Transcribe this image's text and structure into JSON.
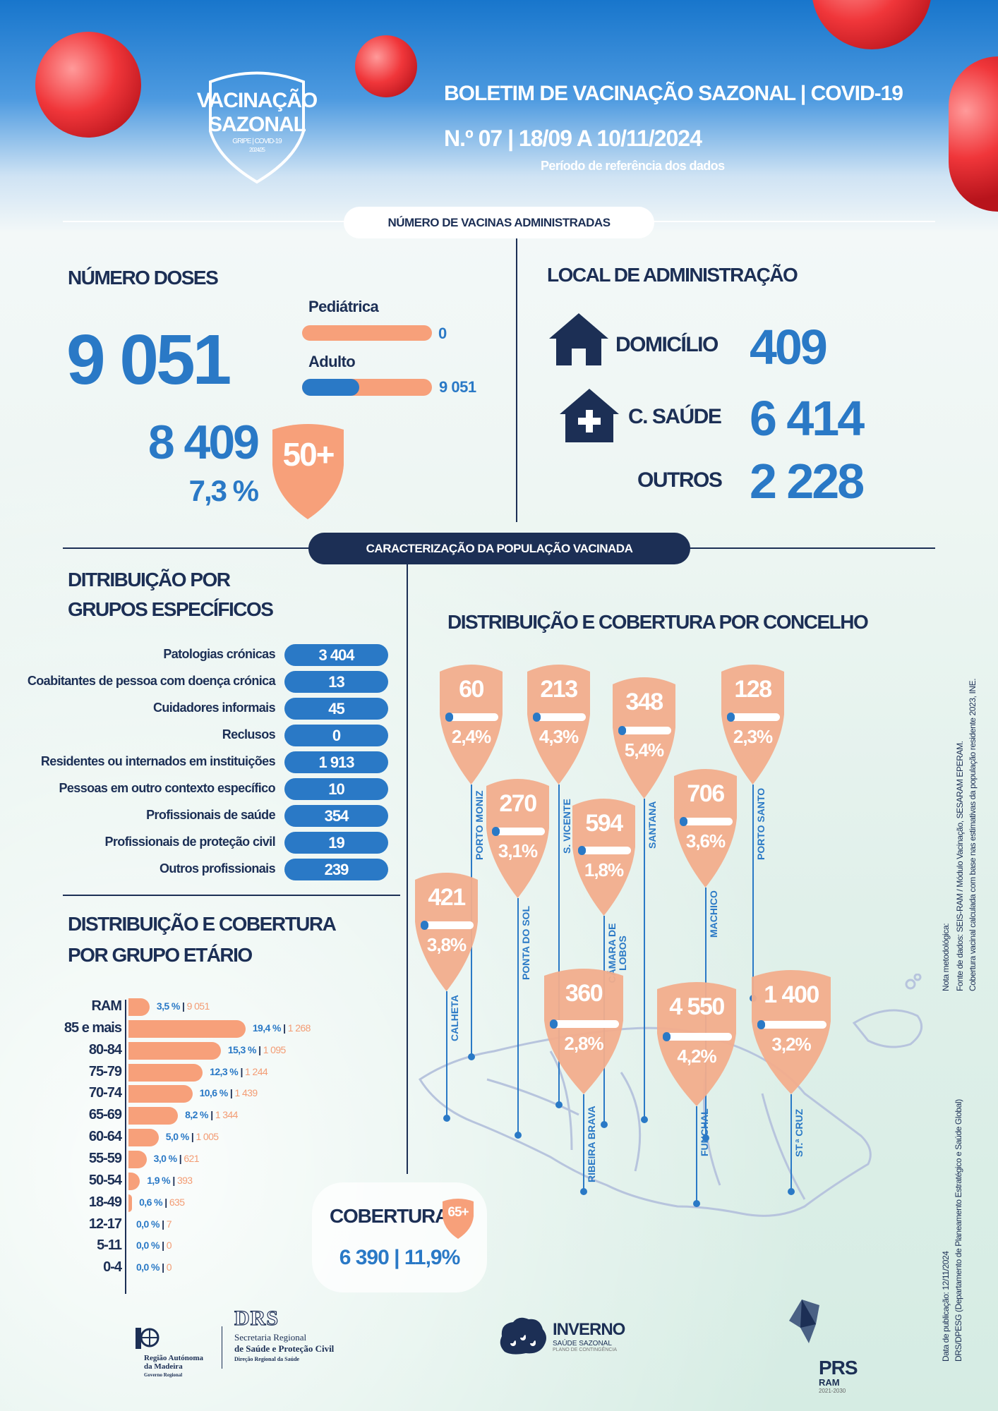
{
  "header": {
    "logo": {
      "line1": "VACINAÇÃO",
      "line2": "SAZONAL",
      "sub": "GRIPE | COVID-19",
      "season": "2024/25"
    },
    "title": "BOLETIM DE VACINAÇÃO SAZONAL | COVID-19",
    "issue": "N.º 07 | 18/09 A 10/11/2024",
    "period_note": "Período de referência dos dados"
  },
  "section1": {
    "pill": "NÚMERO DE VACINAS ADMINISTRADAS",
    "doses": {
      "title": "NÚMERO DOSES",
      "total": "9 051",
      "pediatric": {
        "label": "Pediátrica",
        "value": "0",
        "fill_fraction": 0
      },
      "adult": {
        "label": "Adulto",
        "value": "9 051",
        "fill_fraction": 0.44
      },
      "age50_value": "8 409",
      "age50_pct": "7,3 %",
      "age50_badge": "50+"
    },
    "local": {
      "title": "LOCAL DE ADMINISTRAÇÃO",
      "items": [
        {
          "label": "DOMICÍLIO",
          "value": "409",
          "icon": "house-icon"
        },
        {
          "label": "C. SAÚDE",
          "value": "6 414",
          "icon": "health-center-icon"
        },
        {
          "label": "OUTROS",
          "value": "2 228"
        }
      ]
    }
  },
  "section2": {
    "pill": "CARACTERIZAÇÃO DA POPULAÇÃO VACINADA",
    "groups": {
      "title1": "DITRIBUIÇÃO POR",
      "title2": "GRUPOS ESPECÍFICOS",
      "items": [
        {
          "label": "Patologias crónicas",
          "value": "3 404"
        },
        {
          "label": "Coabitantes de pessoa com doença crónica",
          "value": "13"
        },
        {
          "label": "Cuidadores informais",
          "value": "45"
        },
        {
          "label": "Reclusos",
          "value": "0"
        },
        {
          "label": "Residentes ou internados em instituições",
          "value": "1 913"
        },
        {
          "label": "Pessoas em outro contexto específico",
          "value": "10"
        },
        {
          "label": "Profissionais de saúde",
          "value": "354"
        },
        {
          "label": "Profissionais de proteção civil",
          "value": "19"
        },
        {
          "label": "Outros profissionais",
          "value": "239"
        }
      ]
    },
    "age": {
      "title1": "DISTRIBUIÇÃO E COBERTURA",
      "title2": "POR GRUPO ETÁRIO"
    },
    "coverage65": {
      "label": "COBERTURA",
      "badge": "65+",
      "value": "6 390 | 11,9%"
    },
    "concelho": {
      "title": "DISTRIBUIÇÃO E COBERTURA POR CONCELHO",
      "items": [
        {
          "name": "PORTO MONIZ",
          "doses": "60",
          "coverage": "2,4%",
          "coverage_value": 2.4
        },
        {
          "name": "S. VICENTE",
          "doses": "213",
          "coverage": "4,3%",
          "coverage_value": 4.3
        },
        {
          "name": "SANTANA",
          "doses": "348",
          "coverage": "5,4%",
          "coverage_value": 5.4
        },
        {
          "name": "PORTO SANTO",
          "doses": "128",
          "coverage": "2,3%",
          "coverage_value": 2.3
        },
        {
          "name": "PONTA DO SOL",
          "doses": "270",
          "coverage": "3,1%",
          "coverage_value": 3.1
        },
        {
          "name": "CÂMARA DE LOBOS",
          "doses": "594",
          "coverage": "1,8%",
          "coverage_value": 1.8
        },
        {
          "name": "MACHICO",
          "doses": "706",
          "coverage": "3,6%",
          "coverage_value": 3.6
        },
        {
          "name": "CALHETA",
          "doses": "421",
          "coverage": "3,8%",
          "coverage_value": 3.8
        },
        {
          "name": "RIBEIRA BRAVA",
          "doses": "360",
          "coverage": "2,8%",
          "coverage_value": 2.8
        },
        {
          "name": "FUNCHAL",
          "doses": "4 550",
          "coverage": "4,2%",
          "coverage_value": 4.2
        },
        {
          "name": "ST.ª CRUZ",
          "doses": "1 400",
          "coverage": "3,2%",
          "coverage_value": 3.2
        }
      ]
    }
  },
  "chart_data": {
    "type": "bar",
    "orientation": "horizontal",
    "categories": [
      "RAM",
      "85 e mais",
      "80-84",
      "75-79",
      "70-74",
      "65-69",
      "60-64",
      "55-59",
      "50-54",
      "18-49",
      "12-17",
      "5-11",
      "0-4"
    ],
    "series": [
      {
        "values": [
          3.5,
          19.4,
          15.3,
          12.3,
          10.6,
          8.2,
          5.0,
          3.0,
          1.9,
          0.6,
          0.0,
          0.0,
          0.0
        ],
        "labels": [
          "3,5 %",
          "19,4 %",
          "15,3 %",
          "12,3 %",
          "10,6 %",
          "8,2 %",
          "5,0 %",
          "3,0 %",
          "1,9 %",
          "0,6 %",
          "0,0 %",
          "0,0 %",
          "0,0 %"
        ]
      },
      {
        "values": [
          "9 051",
          "1 268",
          "1 095",
          "1 244",
          "1 439",
          "1 344",
          "1 005",
          "621",
          "393",
          "635",
          "7",
          "0",
          "0"
        ]
      }
    ],
    "bar_color": "#f7a07a",
    "pct_color": "#2a79c6",
    "count_color": "#f39c74",
    "grid": false
  },
  "notes": {
    "method_title": "Nota metodológica:",
    "source": "Fonte de dados: SEIS-RAM / Módulo Vacinação, SESARAM EPERAM.",
    "coverage_note": "Cobertura vacinal calculada com base nas estimativas da população residente 2023, INE.",
    "pub_date": "Data de publicação: 12/11/2024",
    "dept": "DRS/DPESG (Departamento de Planeamento Estratégico e Saúde Global)"
  },
  "footer": {
    "madeira": {
      "l1": "Região Autónoma",
      "l2": "da Madeira",
      "l3": "Governo Regional"
    },
    "drs": {
      "logo": "DRS",
      "l1": "Secretaria Regional",
      "l2": "de Saúde e Proteção Civil",
      "l3": "Direção Regional da Saúde"
    },
    "inverno": {
      "title": "INVERNO",
      "sub": "SAÚDE SAZONAL",
      "sub2": "PLANO DE CONTINGÊNCIA"
    },
    "prs": {
      "title": "PRS",
      "sub": "RAM",
      "years": "2021-2030"
    }
  },
  "colors": {
    "navy": "#1c2f55",
    "blue": "#2a79c6",
    "salmon": "#f4a985",
    "virus": "#f0363a"
  }
}
